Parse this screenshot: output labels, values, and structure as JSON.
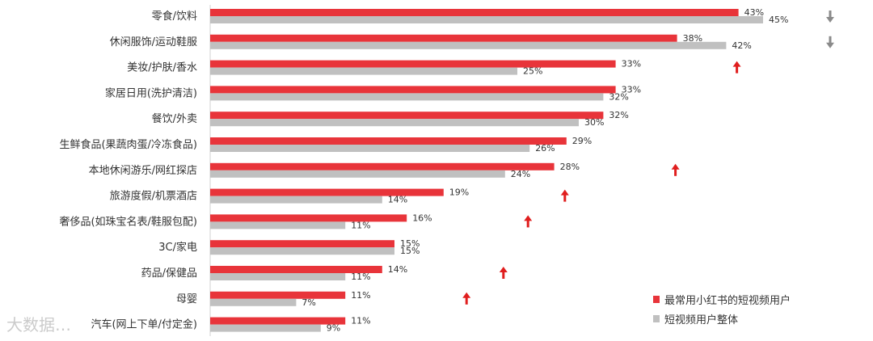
{
  "colors": {
    "primary": "#e8343a",
    "secondary": "#c0c0c0",
    "up_arrow": "#e01e1e",
    "down_arrow": "#8a8a8a"
  },
  "watermark": "大数据…",
  "chart_data": {
    "type": "bar",
    "orientation": "horizontal",
    "categories": [
      "零食/饮料",
      "休闲服饰/运动鞋服",
      "美妆/护肤/香水",
      "家居日用(洗护清洁)",
      "餐饮/外卖",
      "生鲜食品(果蔬肉蛋/冷冻食品)",
      "本地休闲游乐/网红探店",
      "旅游度假/机票酒店",
      "奢侈品(如珠宝名表/鞋服包配)",
      "3C/家电",
      "药品/保健品",
      "母婴",
      "汽车(网上下单/付定金)"
    ],
    "series": [
      {
        "name": "最常用小红书的短视频用户",
        "values": [
          43,
          38,
          33,
          33,
          32,
          29,
          28,
          19,
          16,
          15,
          14,
          11,
          11
        ]
      },
      {
        "name": "短视频用户整体",
        "values": [
          45,
          42,
          25,
          32,
          30,
          26,
          24,
          14,
          11,
          15,
          11,
          7,
          9
        ]
      }
    ],
    "value_suffix": "%",
    "trend_markers": [
      "down",
      "down",
      "up",
      "none",
      "none",
      "none",
      "up",
      "up",
      "up",
      "none",
      "up",
      "up",
      "none"
    ],
    "legend_position": "bottom-right",
    "grid": false
  }
}
